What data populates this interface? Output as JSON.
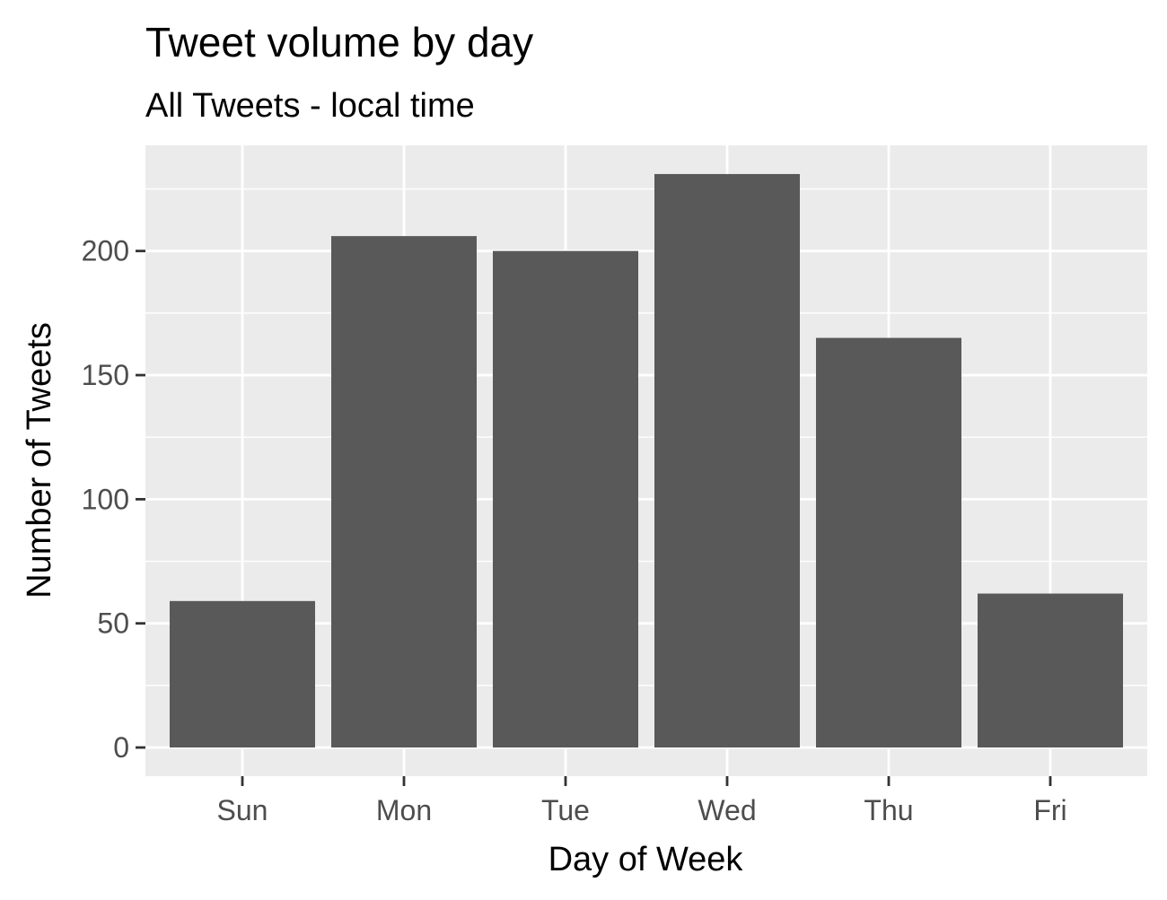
{
  "chart_data": {
    "type": "bar",
    "title": "Tweet volume by day",
    "subtitle": "All Tweets - local time",
    "xlabel": "Day of Week",
    "ylabel": "Number of Tweets",
    "categories": [
      "Sun",
      "Mon",
      "Tue",
      "Wed",
      "Thu",
      "Fri"
    ],
    "values": [
      59,
      206,
      200,
      231,
      165,
      62
    ],
    "ylim": [
      -11.55,
      242.55
    ],
    "yticks": [
      0,
      50,
      100,
      150,
      200
    ],
    "grid": true,
    "legend": "none",
    "colors": {
      "bar": "#595959",
      "panel": "#ebebeb",
      "grid": "#ffffff",
      "tick_text": "#4d4d4d"
    }
  }
}
